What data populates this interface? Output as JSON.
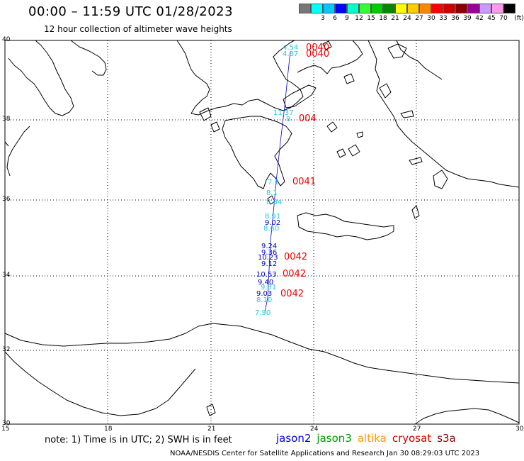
{
  "header": {
    "title": "00:00 – 11:59 UTC 01/28/2023",
    "subtitle": "12 hour collection of altimeter wave heights"
  },
  "legend": {
    "unit": "(ft)",
    "swatches": [
      {
        "color": "#777777",
        "label": ""
      },
      {
        "color": "#00ffff",
        "label": "3"
      },
      {
        "color": "#00c8ff",
        "label": "6"
      },
      {
        "color": "#0000ff",
        "label": "9"
      },
      {
        "color": "#00ffcc",
        "label": "12"
      },
      {
        "color": "#33ff33",
        "label": "15"
      },
      {
        "color": "#00cc00",
        "label": "18"
      },
      {
        "color": "#008800",
        "label": "21"
      },
      {
        "color": "#ffff00",
        "label": "24"
      },
      {
        "color": "#ffcc00",
        "label": "27"
      },
      {
        "color": "#ff8800",
        "label": "30"
      },
      {
        "color": "#ff0000",
        "label": "33"
      },
      {
        "color": "#cc0000",
        "label": "36"
      },
      {
        "color": "#880000",
        "label": "39"
      },
      {
        "color": "#990099",
        "label": "42"
      },
      {
        "color": "#cc99ff",
        "label": "45"
      },
      {
        "color": "#ff99ee",
        "label": "70"
      },
      {
        "color": "#000000",
        "label": ""
      }
    ]
  },
  "map": {
    "lat_labels": [
      "40",
      "38",
      "36",
      "34",
      "32",
      "30"
    ],
    "lon_labels": [
      "15",
      "18",
      "21",
      "24",
      "27",
      "30"
    ],
    "wave_heights": [
      {
        "text": "4.54",
        "color": "#22c8e8"
      },
      {
        "text": "4.87",
        "color": "#22c8e8"
      },
      {
        "text": "11.37",
        "color": "#22c8e8"
      },
      {
        "text": "8",
        "color": "#22c8e8"
      },
      {
        "text": "7.1",
        "color": "#22c8e8"
      },
      {
        "text": "8.1",
        "color": "#22c8e8"
      },
      {
        "text": "8.84",
        "color": "#22c8e8"
      },
      {
        "text": "8.91",
        "color": "#22c8e8"
      },
      {
        "text": "9.02",
        "color": "#0000cc"
      },
      {
        "text": "8.60",
        "color": "#22c8e8"
      },
      {
        "text": "9.24",
        "color": "#0000cc"
      },
      {
        "text": "9.36",
        "color": "#0000cc"
      },
      {
        "text": "10.23",
        "color": "#0000cc"
      },
      {
        "text": "9.12",
        "color": "#0000cc"
      },
      {
        "text": "10.53",
        "color": "#0000cc"
      },
      {
        "text": "9.40",
        "color": "#0000cc"
      },
      {
        "text": "9.31",
        "color": "#22c8e8"
      },
      {
        "text": "9.03",
        "color": "#0000cc"
      },
      {
        "text": "8.10",
        "color": "#22c8e8"
      },
      {
        "text": "7.90",
        "color": "#22c8e8"
      }
    ],
    "time_stamps": [
      {
        "text": "0040"
      },
      {
        "text": "0040"
      },
      {
        "text": "004"
      },
      {
        "text": "0041"
      },
      {
        "text": "0042"
      },
      {
        "text": "0042"
      },
      {
        "text": "0042"
      }
    ],
    "time_color": "#ee0000"
  },
  "footer": {
    "note": "note:  1) Time is in UTC;  2) SWH is in feet",
    "satellites": [
      {
        "name": "jason2",
        "color": "#0000ee"
      },
      {
        "name": "jason3",
        "color": "#009900"
      },
      {
        "name": "altika",
        "color": "#ff9900"
      },
      {
        "name": "cryosat",
        "color": "#cc0000"
      },
      {
        "name": "s3a",
        "color": "#880000"
      }
    ],
    "credit": "NOAA/NESDIS Center for Satellite Applications and Research    Jan 30 08:29:03 UTC 2023"
  }
}
